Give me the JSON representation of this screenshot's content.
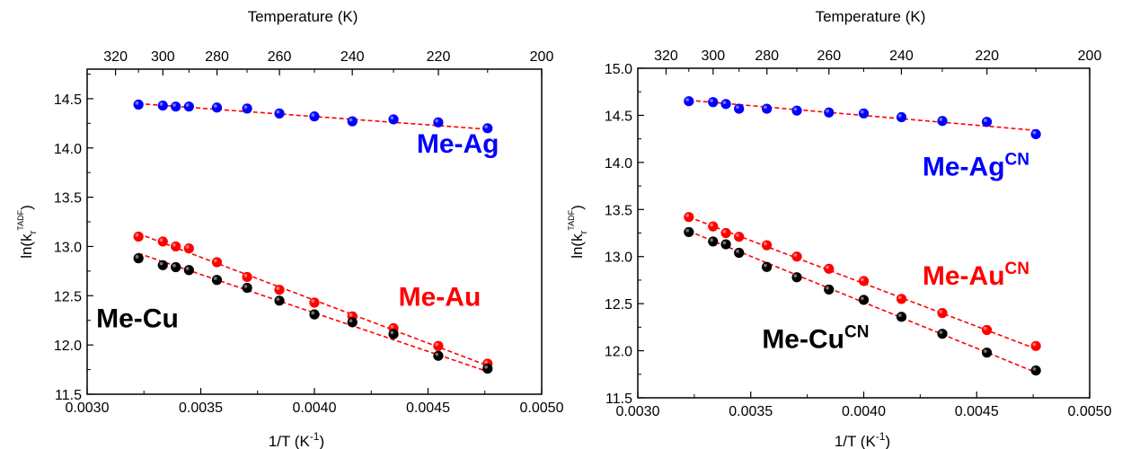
{
  "chart_data": [
    {
      "type": "scatter",
      "panel": "left",
      "xlabel": "1/T (K",
      "xlabel_sup": "-1",
      "xlabel_end": ")",
      "ylabel": "ln(k",
      "ylabel_sub": "r",
      "ylabel_sup": "TADF",
      "ylabel_end": ")",
      "top_axis_label": "Temperature (K)",
      "xlim": [
        0.003,
        0.005
      ],
      "ylim": [
        11.5,
        14.8
      ],
      "x_ticks": [
        "0.0030",
        "0.0035",
        "0.0040",
        "0.0045",
        "0.0050"
      ],
      "y_ticks": [
        "11.5",
        "12.0",
        "12.5",
        "13.0",
        "13.5",
        "14.0",
        "14.5"
      ],
      "top_ticks": [
        "320",
        "300",
        "280",
        "260",
        "240",
        "220",
        "200"
      ],
      "series": [
        {
          "name": "Me-Ag",
          "color": "#0000ff",
          "x": [
            0.003226,
            0.003333,
            0.00339,
            0.003448,
            0.003571,
            0.003704,
            0.003846,
            0.004,
            0.004167,
            0.004348,
            0.004545,
            0.004762
          ],
          "y": [
            14.44,
            14.43,
            14.42,
            14.42,
            14.41,
            14.4,
            14.35,
            14.32,
            14.27,
            14.29,
            14.26,
            14.2
          ],
          "fit": [
            [
              0.003226,
              14.45
            ],
            [
              0.004762,
              14.19
            ]
          ]
        },
        {
          "name": "Me-Au",
          "color": "#ff0000",
          "x": [
            0.003226,
            0.003333,
            0.00339,
            0.003448,
            0.003571,
            0.003704,
            0.003846,
            0.004,
            0.004167,
            0.004348,
            0.004545,
            0.004762
          ],
          "y": [
            13.1,
            13.05,
            13.0,
            12.98,
            12.84,
            12.69,
            12.56,
            12.43,
            12.29,
            12.17,
            11.99,
            11.81
          ],
          "fit": [
            [
              0.003226,
              13.13
            ],
            [
              0.004762,
              11.79
            ]
          ]
        },
        {
          "name": "Me-Cu",
          "color": "#000000",
          "x": [
            0.003226,
            0.003333,
            0.00339,
            0.003448,
            0.003571,
            0.003704,
            0.003846,
            0.004,
            0.004167,
            0.004348,
            0.004545,
            0.004762
          ],
          "y": [
            12.88,
            12.81,
            12.79,
            12.76,
            12.66,
            12.58,
            12.45,
            12.31,
            12.23,
            12.11,
            11.89,
            11.76
          ],
          "fit": [
            [
              0.003226,
              12.93
            ],
            [
              0.004762,
              11.73
            ]
          ]
        }
      ],
      "annotations": [
        {
          "text": "Me-Ag",
          "sup": "",
          "color": "#0000ff",
          "x": 0.00445,
          "y": 13.95
        },
        {
          "text": "Me-Au",
          "sup": "",
          "color": "#ff0000",
          "x": 0.00437,
          "y": 12.4
        },
        {
          "text": "Me-Cu",
          "sup": "",
          "color": "#000000",
          "x": 0.00304,
          "y": 12.18
        }
      ]
    },
    {
      "type": "scatter",
      "panel": "right",
      "xlabel": "1/T (K",
      "xlabel_sup": "-1",
      "xlabel_end": ")",
      "ylabel": "ln(k",
      "ylabel_sub": "r",
      "ylabel_sup": "TADF",
      "ylabel_end": ")",
      "top_axis_label": "Temperature (K)",
      "xlim": [
        0.003,
        0.005
      ],
      "ylim": [
        11.5,
        15.0
      ],
      "x_ticks": [
        "0.0030",
        "0.0035",
        "0.0040",
        "0.0045",
        "0.0050"
      ],
      "y_ticks": [
        "11.5",
        "12.0",
        "12.5",
        "13.0",
        "13.5",
        "14.0",
        "14.5",
        "15.0"
      ],
      "top_ticks": [
        "320",
        "300",
        "280",
        "260",
        "240",
        "220",
        "200"
      ],
      "series": [
        {
          "name": "Me-Ag",
          "color": "#0000ff",
          "x": [
            0.003226,
            0.003333,
            0.00339,
            0.003448,
            0.003571,
            0.003704,
            0.003846,
            0.004,
            0.004167,
            0.004348,
            0.004545,
            0.004762
          ],
          "y": [
            14.65,
            14.64,
            14.62,
            14.57,
            14.57,
            14.55,
            14.53,
            14.52,
            14.48,
            14.44,
            14.43,
            14.3
          ],
          "fit": [
            [
              0.003226,
              14.66
            ],
            [
              0.004762,
              14.34
            ]
          ]
        },
        {
          "name": "Me-Au",
          "color": "#ff0000",
          "x": [
            0.003226,
            0.003333,
            0.00339,
            0.003448,
            0.003571,
            0.003704,
            0.003846,
            0.004,
            0.004167,
            0.004348,
            0.004545,
            0.004762
          ],
          "y": [
            13.42,
            13.32,
            13.25,
            13.21,
            13.12,
            13.0,
            12.87,
            12.74,
            12.55,
            12.4,
            12.22,
            12.05
          ],
          "fit": [
            [
              0.003226,
              13.42
            ],
            [
              0.004762,
              12.02
            ]
          ]
        },
        {
          "name": "Me-Cu",
          "color": "#000000",
          "x": [
            0.003226,
            0.003333,
            0.00339,
            0.003448,
            0.003571,
            0.003704,
            0.003846,
            0.004,
            0.004167,
            0.004348,
            0.004545,
            0.004762
          ],
          "y": [
            13.26,
            13.16,
            13.13,
            13.04,
            12.89,
            12.78,
            12.65,
            12.54,
            12.36,
            12.18,
            11.98,
            11.79
          ],
          "fit": [
            [
              0.003226,
              13.27
            ],
            [
              0.004762,
              11.77
            ]
          ]
        }
      ],
      "annotations": [
        {
          "text": "Me-Ag",
          "sup": "CN",
          "color": "#0000ff",
          "x": 0.00426,
          "y": 13.86
        },
        {
          "text": "Me-Au",
          "sup": "CN",
          "color": "#ff0000",
          "x": 0.00426,
          "y": 12.7
        },
        {
          "text": "Me-Cu",
          "sup": "CN",
          "color": "#000000",
          "x": 0.00355,
          "y": 12.03
        }
      ]
    }
  ]
}
